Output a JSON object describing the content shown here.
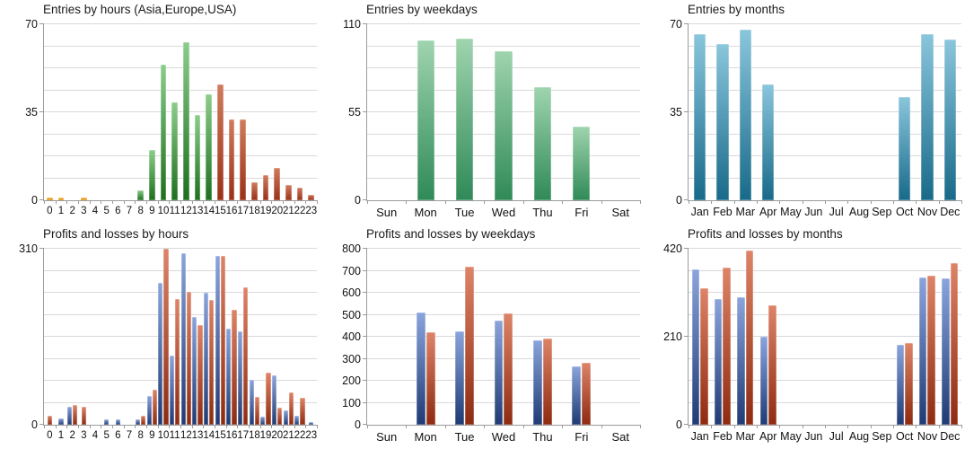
{
  "palette": {
    "orange": [
      "#f4ab38",
      "#e08a00"
    ],
    "green": [
      "#8bcd8b",
      "#1d701d"
    ],
    "brick": [
      "#d07c5e",
      "#9a3019"
    ],
    "mint": [
      "#9fd4ae",
      "#2f8a57"
    ],
    "teal": [
      "#8ac6dc",
      "#186a89"
    ],
    "blue": [
      "#8ba4dc",
      "#1f3a74"
    ],
    "red": [
      "#dd8468",
      "#8e2a10"
    ]
  },
  "grid": {
    "divisions": 8,
    "line_color": "#d9d9d9",
    "axis_color": "#9b9b9b"
  },
  "chart_data": [
    {
      "id": "entries-by-hours",
      "type": "bar",
      "title": "Entries by hours (Asia,Europe,USA)",
      "categories": [
        "0",
        "1",
        "2",
        "3",
        "4",
        "5",
        "6",
        "7",
        "8",
        "9",
        "10",
        "11",
        "12",
        "13",
        "14",
        "15",
        "16",
        "17",
        "18",
        "19",
        "20",
        "21",
        "22",
        "23"
      ],
      "values": [
        1,
        1,
        0,
        1,
        0,
        0,
        0,
        0,
        4,
        20,
        54,
        39,
        63,
        34,
        42,
        46,
        32,
        32,
        7,
        10,
        13,
        6,
        5,
        2
      ],
      "colors": [
        "orange",
        "orange",
        "orange",
        "orange",
        "green",
        "green",
        "green",
        "green",
        "green",
        "green",
        "green",
        "green",
        "green",
        "green",
        "green",
        "brick",
        "brick",
        "brick",
        "brick",
        "brick",
        "brick",
        "brick",
        "brick",
        "brick"
      ],
      "ylim": [
        0,
        70
      ],
      "y_ticks": [
        0,
        35,
        70
      ],
      "grid": true,
      "legend": "none",
      "bar_width_pct": 55
    },
    {
      "id": "entries-by-weekdays",
      "type": "bar",
      "title": "Entries by weekdays",
      "categories": [
        "Sun",
        "Mon",
        "Tue",
        "Wed",
        "Thu",
        "Fri",
        "Sat"
      ],
      "values": [
        0,
        100,
        101,
        93,
        71,
        46,
        0
      ],
      "color": "mint",
      "ylim": [
        0,
        110
      ],
      "y_ticks": [
        0,
        55,
        110
      ],
      "grid": true,
      "legend": "none",
      "bar_width_pct": 44
    },
    {
      "id": "entries-by-months",
      "type": "bar",
      "title": "Entries by months",
      "categories": [
        "Jan",
        "Feb",
        "Mar",
        "Apr",
        "May",
        "Jun",
        "Jul",
        "Aug",
        "Sep",
        "Oct",
        "Nov",
        "Dec"
      ],
      "values": [
        66,
        62,
        68,
        46,
        0,
        0,
        0,
        0,
        0,
        41,
        66,
        64
      ],
      "color": "teal",
      "ylim": [
        0,
        70
      ],
      "y_ticks": [
        0,
        35,
        70
      ],
      "grid": true,
      "legend": "none",
      "bar_width_pct": 52
    },
    {
      "id": "profits-losses-by-hours",
      "type": "bar",
      "title": "Profits and losses by hours",
      "categories": [
        "0",
        "1",
        "2",
        "3",
        "4",
        "5",
        "6",
        "7",
        "8",
        "9",
        "10",
        "11",
        "12",
        "13",
        "14",
        "15",
        "16",
        "17",
        "18",
        "19",
        "20",
        "21",
        "22",
        "23"
      ],
      "series": [
        {
          "color": "blue",
          "values": [
            0,
            11,
            32,
            0,
            0,
            9,
            10,
            0,
            10,
            51,
            250,
            122,
            302,
            190,
            233,
            297,
            170,
            165,
            79,
            14,
            87,
            26,
            16,
            5
          ]
        },
        {
          "color": "red",
          "values": [
            16,
            0,
            35,
            32,
            0,
            0,
            0,
            0,
            16,
            62,
            310,
            222,
            234,
            175,
            220,
            297,
            202,
            242,
            49,
            91,
            30,
            57,
            47,
            0
          ]
        }
      ],
      "ylim": [
        0,
        310
      ],
      "y_ticks": [
        0,
        310
      ],
      "grid": true,
      "legend": "none",
      "bar_width_pct": 42
    },
    {
      "id": "profits-losses-by-weekdays",
      "type": "bar",
      "title": "Profits and losses by weekdays",
      "categories": [
        "Sun",
        "Mon",
        "Tue",
        "Wed",
        "Thu",
        "Fri",
        "Sat"
      ],
      "series": [
        {
          "color": "blue",
          "values": [
            0,
            510,
            425,
            475,
            385,
            265,
            0
          ]
        },
        {
          "color": "red",
          "values": [
            0,
            420,
            720,
            505,
            390,
            280,
            0
          ]
        }
      ],
      "ylim": [
        0,
        800
      ],
      "y_ticks": [
        0,
        100,
        200,
        300,
        400,
        500,
        600,
        700,
        800
      ],
      "grid": true,
      "legend": "none",
      "bar_width_pct": 23
    },
    {
      "id": "profits-losses-by-months",
      "type": "bar",
      "title": "Profits and losses by months",
      "categories": [
        "Jan",
        "Feb",
        "Mar",
        "Apr",
        "May",
        "Jun",
        "Jul",
        "Aug",
        "Sep",
        "Oct",
        "Nov",
        "Dec"
      ],
      "series": [
        {
          "color": "blue",
          "values": [
            370,
            300,
            305,
            210,
            0,
            0,
            0,
            0,
            0,
            190,
            352,
            350
          ]
        },
        {
          "color": "red",
          "values": [
            325,
            375,
            415,
            285,
            0,
            0,
            0,
            0,
            0,
            195,
            355,
            385
          ]
        }
      ],
      "ylim": [
        0,
        420
      ],
      "y_ticks": [
        0,
        210,
        420
      ],
      "grid": true,
      "legend": "none",
      "bar_width_pct": 33
    }
  ]
}
